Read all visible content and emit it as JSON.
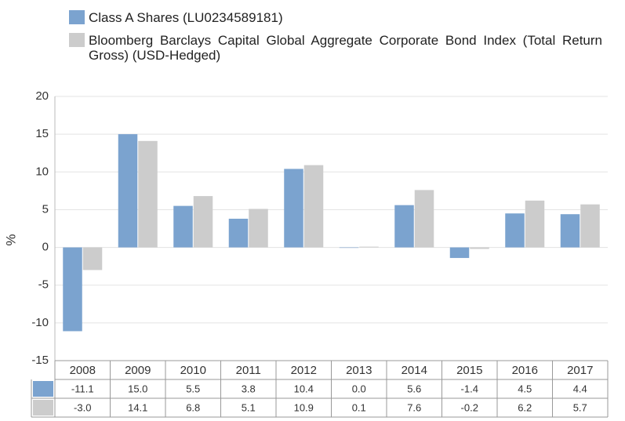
{
  "chart_data": {
    "type": "bar",
    "categories": [
      "2008",
      "2009",
      "2010",
      "2011",
      "2012",
      "2013",
      "2014",
      "2015",
      "2016",
      "2017"
    ],
    "series": [
      {
        "name": "Class A Shares (LU0234589181)",
        "color": "#7ba3cf",
        "values": [
          -11.1,
          15,
          5.5,
          3.8,
          10.4,
          0,
          5.6,
          -1.4,
          4.5,
          4.4
        ],
        "value_labels": [
          "-11.1",
          "15.0",
          "5.5",
          "3.8",
          "10.4",
          "0.0",
          "5.6",
          "-1.4",
          "4.5",
          "4.4"
        ]
      },
      {
        "name": "Bloomberg Barclays Capital Global Aggregate Corporate Bond Index (Total Return Gross) (USD-Hedged)",
        "color": "#cccccc",
        "values": [
          -3,
          14.1,
          6.8,
          5.1,
          10.9,
          0.1,
          7.6,
          -0.2,
          6.2,
          5.7
        ],
        "value_labels": [
          "-3.0",
          "14.1",
          "6.8",
          "5.1",
          "10.9",
          "0.1",
          "7.6",
          "-0.2",
          "6.2",
          "5.7"
        ]
      }
    ],
    "y_label": "%",
    "ylim": [
      -15,
      20
    ],
    "yticks": [
      -15,
      -10,
      -5,
      0,
      5,
      10,
      15,
      20
    ],
    "grid": true
  }
}
